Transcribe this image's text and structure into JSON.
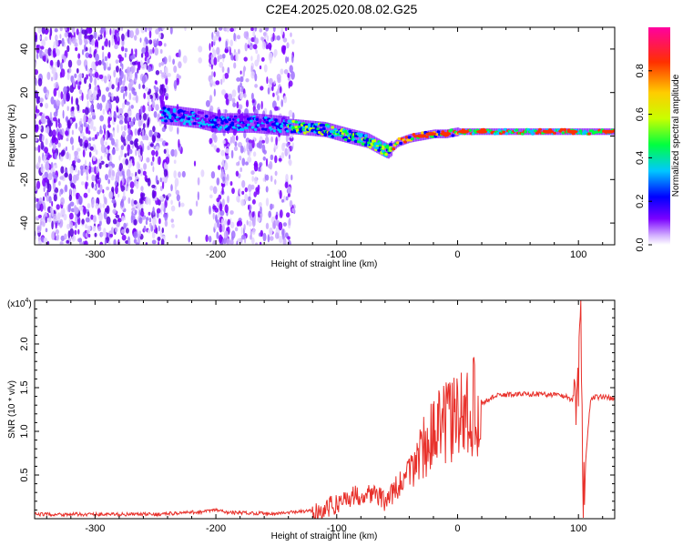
{
  "title": "C2E4.2025.020.08.02.G25",
  "chart_data": [
    {
      "type": "heatmap",
      "xlabel": "Height of straight line (km)",
      "ylabel": "Frequency (Hz)",
      "xlim": [
        -350,
        130
      ],
      "ylim": [
        -50,
        50
      ],
      "xticks": [
        "-300",
        "-200",
        "-100",
        "0",
        "100"
      ],
      "yticks": [
        "-40",
        "-20",
        "0",
        "20",
        "40"
      ],
      "colorbar": {
        "label": "Normalized spectral amplitude",
        "range": [
          0.0,
          1.0
        ],
        "ticks": [
          "0.0",
          "0.2",
          "0.4",
          "0.6",
          "0.8"
        ],
        "colormap": [
          "#ffffff",
          "#d6b6ff",
          "#7a00ff",
          "#0000ff",
          "#00c8ff",
          "#00ff40",
          "#c8ff00",
          "#ffcc00",
          "#ff3000",
          "#ff00a0"
        ]
      },
      "ridge": {
        "x": [
          -245,
          -230,
          -215,
          -200,
          -185,
          -170,
          -150,
          -130,
          -110,
          -90,
          -75,
          -65,
          -58,
          -50,
          -40,
          -30,
          -20,
          -10,
          0,
          20,
          50,
          80,
          95,
          100,
          130
        ],
        "y": [
          10,
          9,
          8,
          6,
          6,
          6,
          5,
          4,
          3,
          0,
          -2,
          -5,
          -7,
          -3,
          -1,
          0,
          1,
          1,
          2,
          2,
          2,
          2,
          2,
          2,
          2
        ]
      }
    },
    {
      "type": "line",
      "xlabel": "Height of straight line (km)",
      "ylabel": "SNR (10 * v/v)",
      "yscale_label": "(x10",
      "yscale_exp": "4",
      "xlim": [
        -350,
        130
      ],
      "ylim": [
        0,
        2.5
      ],
      "xticks": [
        "-300",
        "-200",
        "-100",
        "0",
        "100"
      ],
      "yticks": [
        "0.5",
        "1.0",
        "1.5",
        "2.0"
      ],
      "series": [
        {
          "color": "#e8312b",
          "x": [
            -350,
            -300,
            -250,
            -210,
            -200,
            -190,
            -150,
            -110,
            -90,
            -70,
            -60,
            -50,
            -40,
            -30,
            -20,
            -10,
            0,
            10,
            20,
            30,
            40,
            60,
            80,
            90,
            95,
            100,
            102,
            104,
            110,
            120,
            130
          ],
          "y": [
            0.05,
            0.05,
            0.05,
            0.08,
            0.1,
            0.07,
            0.06,
            0.1,
            0.25,
            0.3,
            0.2,
            0.35,
            0.5,
            0.8,
            0.95,
            1.1,
            1.15,
            1.25,
            1.32,
            1.4,
            1.42,
            1.43,
            1.42,
            1.4,
            1.35,
            1.5,
            2.3,
            0.3,
            1.38,
            1.4,
            1.37
          ]
        }
      ]
    }
  ]
}
